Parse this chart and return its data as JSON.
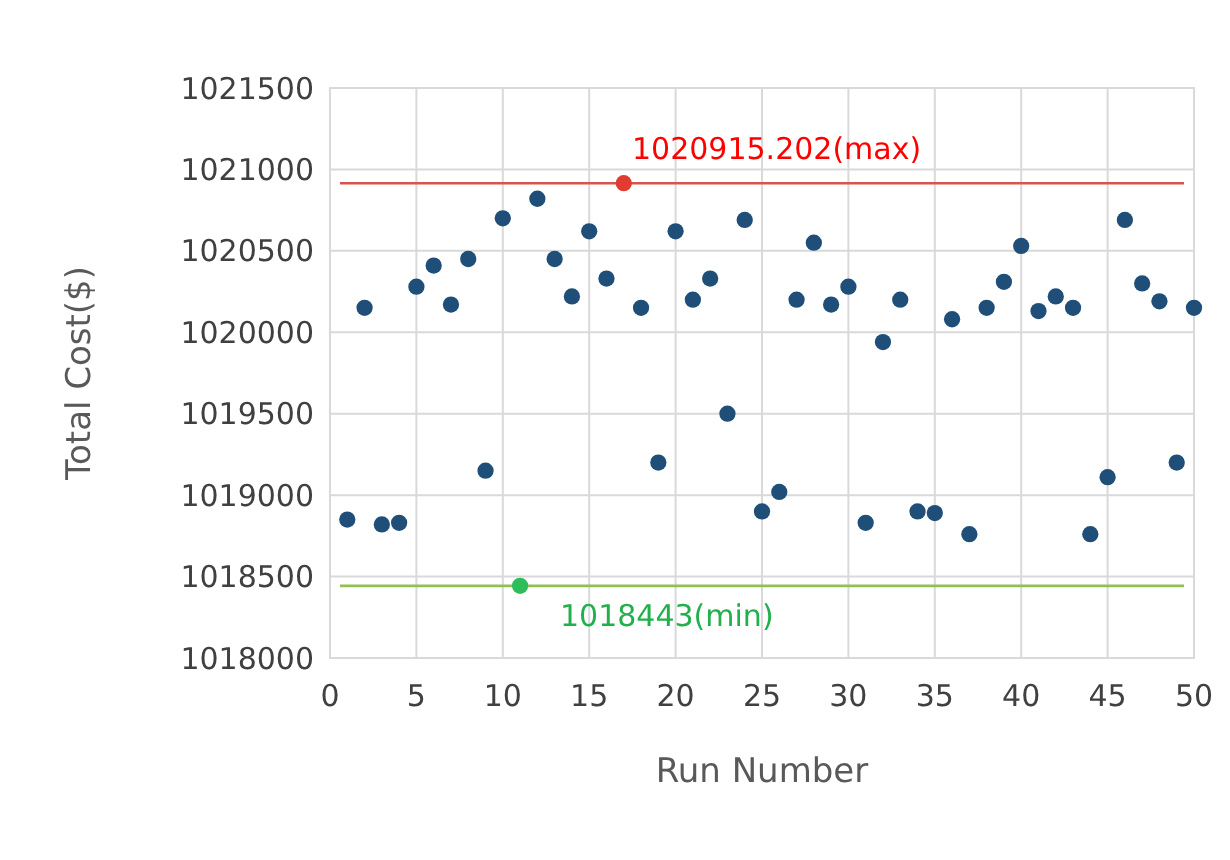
{
  "chart_data": {
    "type": "scatter",
    "xlabel": "Run Number",
    "ylabel": "Total Cost($)",
    "xlim": [
      0,
      50
    ],
    "xticks": [
      0,
      5,
      10,
      15,
      20,
      25,
      30,
      35,
      40,
      45,
      50
    ],
    "ylim": [
      1018000,
      1021500
    ],
    "yticks": [
      1018000,
      1018500,
      1019000,
      1019500,
      1020000,
      1020500,
      1021000,
      1021500
    ],
    "grid": true,
    "marker": "circle",
    "series": [
      {
        "color": "#1f4e79",
        "x": [
          1,
          2,
          3,
          4,
          5,
          6,
          7,
          8,
          9,
          10,
          12,
          13,
          14,
          15,
          16,
          18,
          19,
          20,
          21,
          22,
          23,
          24,
          25,
          26,
          27,
          28,
          29,
          30,
          31,
          32,
          33,
          34,
          35,
          36,
          37,
          38,
          39,
          40,
          41,
          42,
          43,
          44,
          45,
          46,
          47,
          48,
          49,
          50
        ],
        "values": [
          1018850,
          1020150,
          1018820,
          1018830,
          1020280,
          1020410,
          1020170,
          1020450,
          1019150,
          1020700,
          1020820,
          1020450,
          1020220,
          1020620,
          1020330,
          1020150,
          1019200,
          1020620,
          1020200,
          1020330,
          1019500,
          1020690,
          1018900,
          1019020,
          1020200,
          1020550,
          1020170,
          1020280,
          1018830,
          1019940,
          1020200,
          1018900,
          1018890,
          1020080,
          1018760,
          1020150,
          1020310,
          1020530,
          1020130,
          1020220,
          1020150,
          1018760,
          1019110,
          1020690,
          1020300,
          1020190,
          1019200,
          1020150
        ]
      },
      {
        "color": "#e03c31",
        "x": [
          17
        ],
        "values": [
          1020915.202
        ]
      },
      {
        "color": "#2ebd5a",
        "x": [
          11
        ],
        "values": [
          1018443
        ]
      }
    ],
    "ref_lines": [
      {
        "axis": "y",
        "value": 1020915.202,
        "label": "1020915.202(max)",
        "color": "#d9534f"
      },
      {
        "axis": "y",
        "value": 1018443,
        "label": "1018443(min)",
        "color": "#92c050"
      }
    ]
  }
}
